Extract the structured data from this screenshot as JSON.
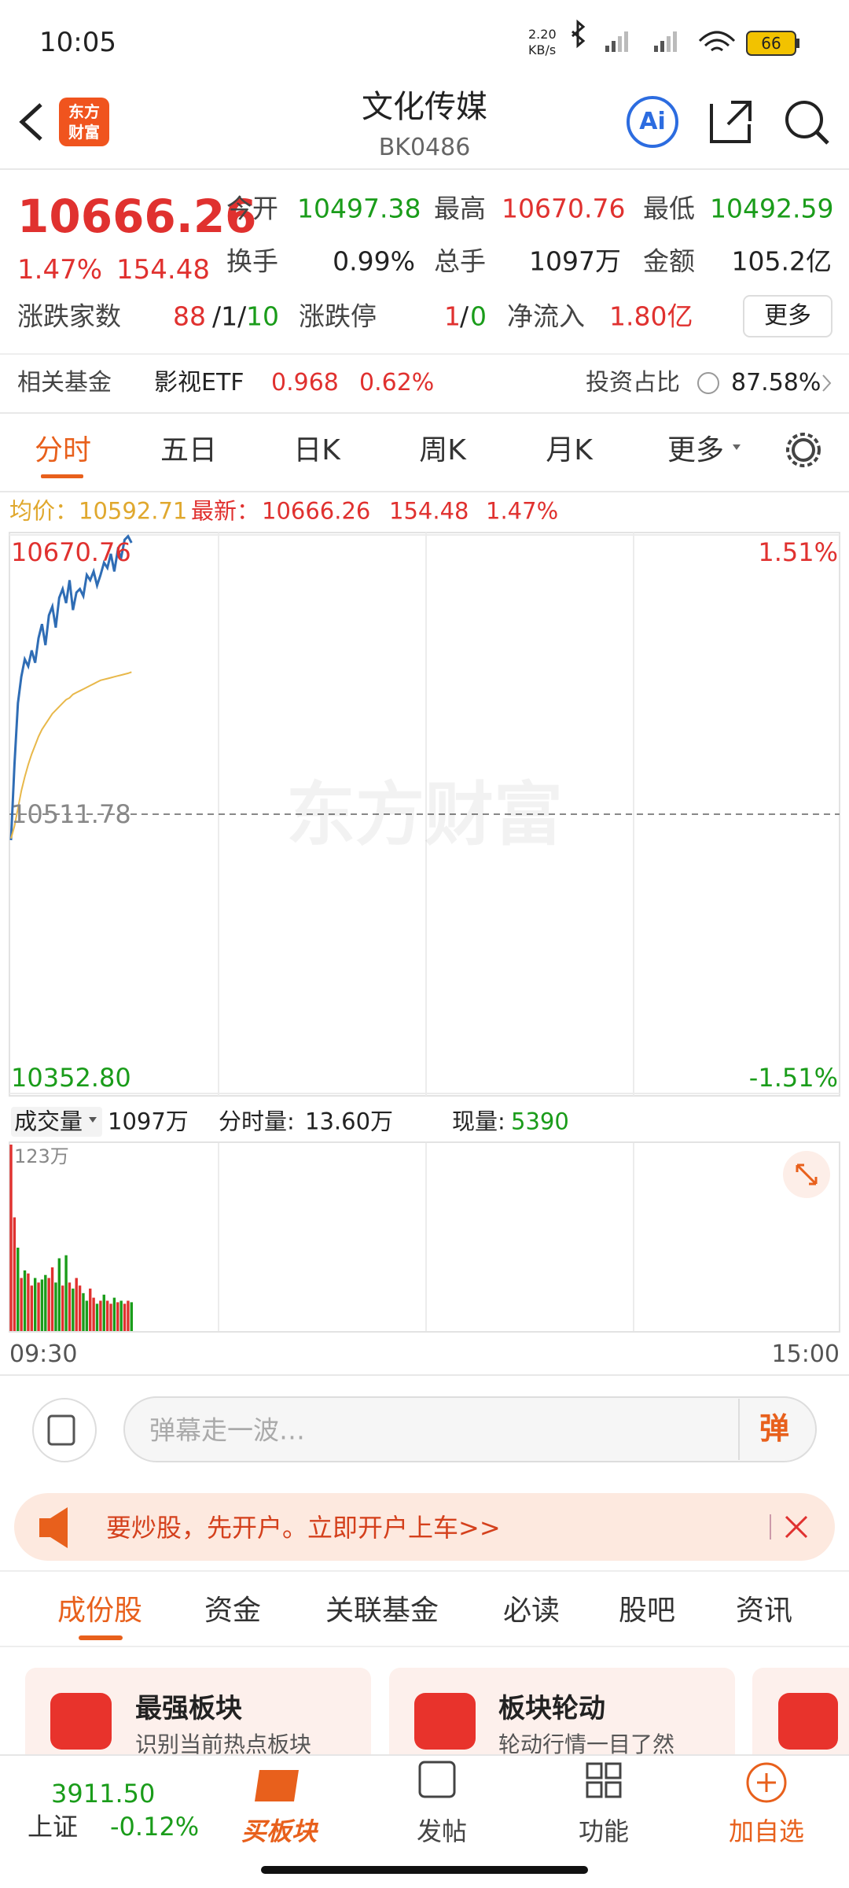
{
  "status_bar": {
    "time": "10:05",
    "net_speed": "2.20",
    "net_unit": "KB/s",
    "battery": "66"
  },
  "header": {
    "logo": [
      "东方",
      "财富"
    ],
    "title": "文化传媒",
    "code": "BK0486",
    "ai": "Ai"
  },
  "quote": {
    "price": "10666.26",
    "change_pct": "1.47%",
    "change": "154.48",
    "stats": [
      {
        "label": "今开",
        "value": "10497.38",
        "color": "#1a9c1a"
      },
      {
        "label": "最高",
        "value": "10670.76",
        "color": "#e0312f"
      },
      {
        "label": "最低",
        "value": "10492.59",
        "color": "#1a9c1a"
      },
      {
        "label": "换手",
        "value": "0.99%",
        "color": "#222222"
      },
      {
        "label": "总手",
        "value": "1097万",
        "color": "#222222"
      },
      {
        "label": "金额",
        "value": "105.2亿",
        "color": "#222222"
      }
    ],
    "breadth": {
      "label": "涨跌家数",
      "up": "88",
      "flat": "/1/",
      "down": "10"
    },
    "limit": {
      "label": "涨跌停",
      "up": "1",
      "sep": "/",
      "down": "0"
    },
    "inflow": {
      "label": "净流入",
      "value": "1.80亿"
    },
    "more": "更多"
  },
  "fund": {
    "label": "相关基金",
    "name": "影视ETF",
    "price": "0.968",
    "change": "0.62%",
    "ratio_label": "投资占比",
    "ratio": "87.58%"
  },
  "tabs": {
    "items": [
      "分时",
      "五日",
      "日K",
      "周K",
      "月K",
      "更多"
    ],
    "active": 0
  },
  "chart": {
    "avg_label": "均价：",
    "avg": "10592.71",
    "latest_label": "最新：",
    "latest": "10666.26",
    "change": "154.48",
    "change_pct": "1.47%",
    "watermark": "东方财富",
    "ylim": [
      10352.8,
      10670.76
    ],
    "yticks": [
      10670.76,
      10511.78,
      {
        "value": 10352.8,
        "label": "10352.80"
      }
    ],
    "pct_ticks": [
      {
        "value": 1.51,
        "label": "1.51%"
      },
      {
        "value": -1.51,
        "label": "-1.51%"
      }
    ],
    "series": [
      {
        "color": "#2f6db5",
        "values": [
          10497,
          10540,
          10575,
          10590,
          10600,
          10596,
          10605,
          10598,
          10612,
          10620,
          10608,
          10625,
          10630,
          10618,
          10635,
          10640,
          10632,
          10645,
          10628,
          10638,
          10640,
          10636,
          10648,
          10645,
          10650,
          10642,
          10648,
          10655,
          10652,
          10660,
          10650,
          10662,
          10658,
          10668,
          10670,
          10666.26
        ]
      },
      {
        "color": "#e8b84a",
        "values": [
          10498,
          10505,
          10515,
          10525,
          10533,
          10540,
          10546,
          10551,
          10556,
          10560,
          10563,
          10566,
          10569,
          10571,
          10573,
          10575,
          10577,
          10578,
          10580,
          10581,
          10582,
          10583,
          10584,
          10585,
          10586,
          10587,
          10588,
          10588.5,
          10589,
          10589.5,
          10590,
          10590.5,
          10591,
          10591.5,
          10592,
          10592.71
        ]
      }
    ],
    "volume_label": "成交量",
    "volume_total": "1097万",
    "minute_volume_label": "分时量:",
    "minute_volume": "13.60万",
    "current_label": "现量:",
    "current": "5390",
    "volume_max_label": "123万",
    "volume_ylim": [
      0,
      123
    ],
    "volume": [
      123,
      75,
      55,
      35,
      40,
      38,
      30,
      35,
      32,
      34,
      37,
      35,
      42,
      32,
      48,
      30,
      50,
      32,
      28,
      35,
      30,
      25,
      20,
      28,
      22,
      18,
      20,
      24,
      20,
      18,
      22,
      19,
      20,
      18,
      20,
      19
    ],
    "volume_colors": [
      "#e0312f",
      "#e0312f",
      "#1a9c1a",
      "#e0312f",
      "#1a9c1a",
      "#e0312f",
      "#e0312f",
      "#1a9c1a",
      "#e0312f",
      "#1a9c1a",
      "#1a9c1a",
      "#e0312f",
      "#e0312f",
      "#1a9c1a",
      "#1a9c1a",
      "#e0312f",
      "#1a9c1a",
      "#e0312f",
      "#1a9c1a",
      "#e0312f",
      "#e0312f",
      "#1a9c1a",
      "#1a9c1a",
      "#e0312f",
      "#e0312f",
      "#1a9c1a",
      "#e0312f",
      "#1a9c1a",
      "#e0312f",
      "#e0312f",
      "#1a9c1a",
      "#e0312f",
      "#1a9c1a",
      "#e0312f",
      "#e0312f",
      "#1a9c1a"
    ],
    "x_start": "09:30",
    "x_end": "15:00"
  },
  "danmaku": {
    "placeholder": "弹幕走一波…",
    "button": "弹"
  },
  "banner": {
    "text": "要炒股，先开户。立即开户上车>>"
  },
  "sub_tabs": {
    "items": [
      "成份股",
      "资金",
      "关联基金",
      "必读",
      "股吧",
      "资讯"
    ],
    "active": 0
  },
  "cards": [
    {
      "title": "最强板块",
      "desc": "识别当前热点板块"
    },
    {
      "title": "板块轮动",
      "desc": "轮动行情一目了然"
    }
  ],
  "bottom_nav": {
    "index_value": "3911.50",
    "index_name": "上证",
    "index_change": "-0.12%",
    "items": [
      "买板块",
      "发帖",
      "功能",
      "加自选"
    ]
  }
}
